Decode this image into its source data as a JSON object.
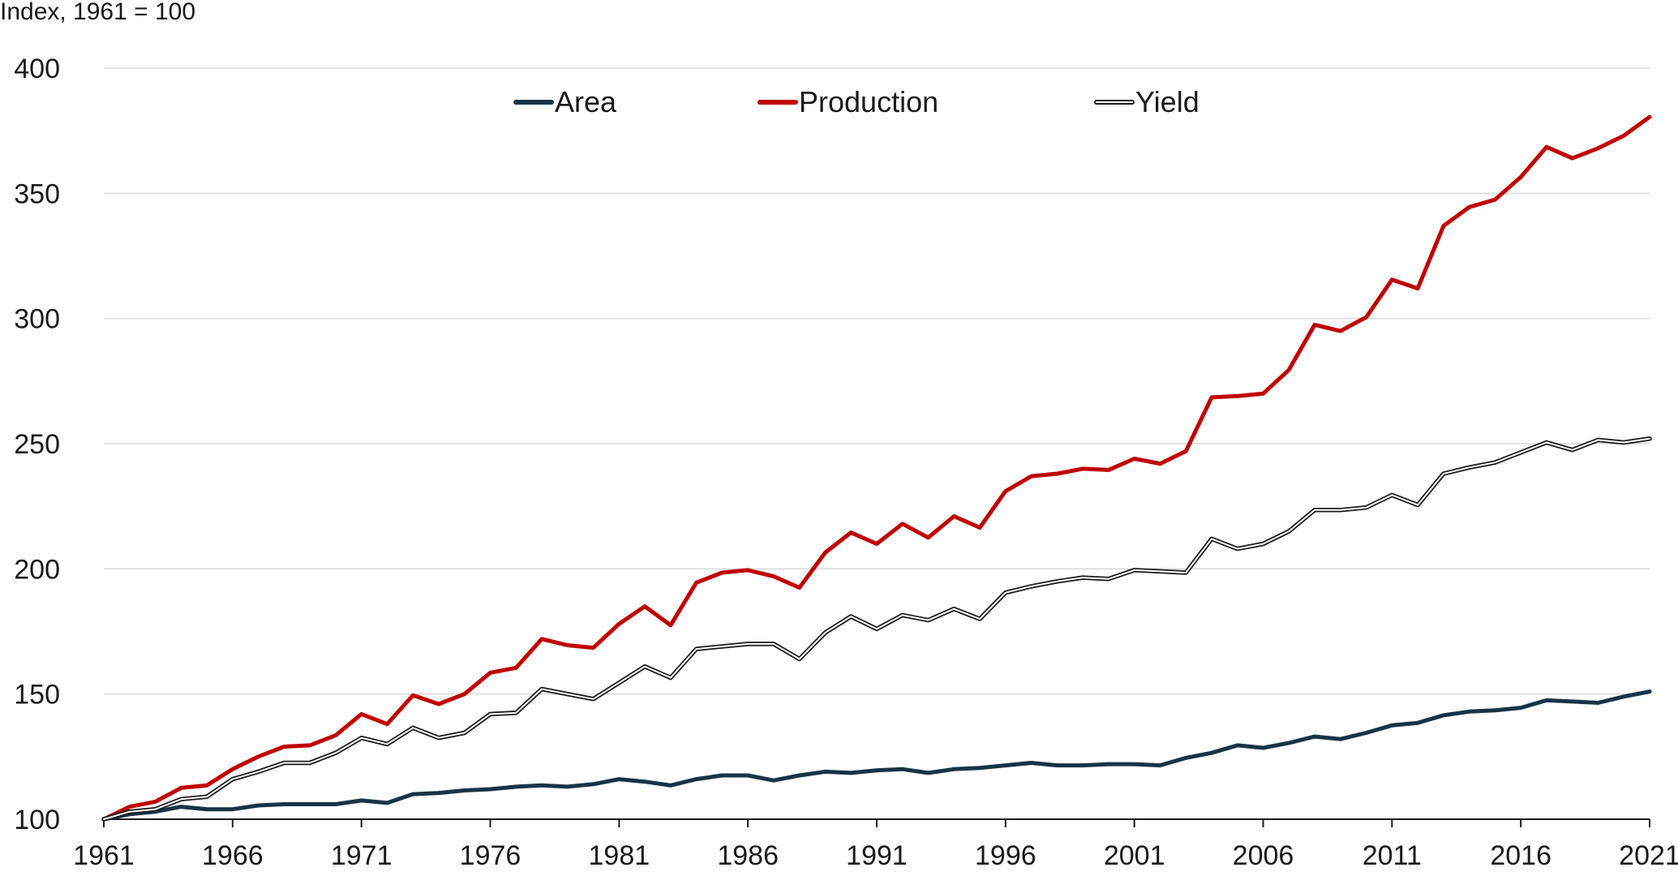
{
  "chart_data": {
    "type": "line",
    "title": "",
    "ylabel": "Index, 1961 = 100",
    "xlabel": "",
    "ylim": [
      100,
      400
    ],
    "xlim": [
      1961,
      2021
    ],
    "yticks": [
      100,
      150,
      200,
      250,
      300,
      350,
      400
    ],
    "xticks": [
      1961,
      1966,
      1971,
      1976,
      1981,
      1986,
      1991,
      1996,
      2001,
      2006,
      2011,
      2016,
      2021
    ],
    "grid": true,
    "legend_position": "top-center",
    "x": [
      1961,
      1962,
      1963,
      1964,
      1965,
      1966,
      1967,
      1968,
      1969,
      1970,
      1971,
      1972,
      1973,
      1974,
      1975,
      1976,
      1977,
      1978,
      1979,
      1980,
      1981,
      1982,
      1983,
      1984,
      1985,
      1986,
      1987,
      1988,
      1989,
      1990,
      1991,
      1992,
      1993,
      1994,
      1995,
      1996,
      1997,
      1998,
      1999,
      2000,
      2001,
      2002,
      2003,
      2004,
      2005,
      2006,
      2007,
      2008,
      2009,
      2010,
      2011,
      2012,
      2013,
      2014,
      2015,
      2016,
      2017,
      2018,
      2019,
      2020,
      2021
    ],
    "series": [
      {
        "name": "Area",
        "color": "#173447",
        "style": "solid",
        "values": [
          100,
          102,
          103,
          105,
          104,
          104,
          105.5,
          106,
          106,
          106,
          107.5,
          106.5,
          110,
          110.5,
          111.5,
          112,
          113,
          113.5,
          113,
          114,
          116,
          115,
          113.5,
          116,
          117.5,
          117.5,
          115.5,
          117.5,
          119,
          118.5,
          119.5,
          120,
          118.5,
          120,
          120.5,
          121.5,
          122.5,
          121.5,
          121.5,
          122,
          122,
          121.5,
          124.5,
          126.5,
          129.5,
          128.5,
          130.5,
          133,
          132,
          134.5,
          137.5,
          138.5,
          141.5,
          143,
          143.5,
          144.5,
          147.5,
          147,
          146.5,
          149,
          151
        ]
      },
      {
        "name": "Production",
        "color": "#c00000",
        "style": "solid",
        "values": [
          100,
          105,
          107,
          112.5,
          113.5,
          120,
          125,
          129,
          129.5,
          133.5,
          142,
          138,
          149.5,
          146,
          150,
          158.5,
          160.5,
          172,
          169.5,
          168.5,
          178,
          185,
          177.5,
          194.5,
          198.5,
          199.5,
          197,
          192.5,
          206.5,
          214.5,
          210,
          218,
          212.5,
          221,
          216.5,
          231,
          237,
          238,
          240,
          239.5,
          244,
          242,
          247,
          268.5,
          269,
          270,
          279.5,
          297.5,
          295,
          300.5,
          315.5,
          312,
          337,
          344.5,
          347.5,
          356.5,
          368.5,
          364,
          368,
          373,
          380.5
        ]
      },
      {
        "name": "Yield",
        "color": "#1a1a1a",
        "style": "double",
        "values": [
          100,
          103,
          104,
          108,
          109,
          116,
          119,
          122.5,
          122.5,
          126.5,
          132.5,
          130,
          136.5,
          132.5,
          134.5,
          142,
          142.5,
          152,
          150,
          148,
          154.5,
          161,
          156.5,
          168,
          169,
          170,
          170,
          164,
          174.5,
          181,
          176,
          181.5,
          179.5,
          184,
          180,
          190.5,
          193,
          195,
          196.5,
          196,
          199.5,
          199,
          198.5,
          212,
          208,
          210,
          215,
          223.5,
          223.5,
          224.5,
          229.5,
          225.5,
          238,
          240.5,
          242.5,
          246.5,
          250.5,
          247.5,
          251.5,
          250.5,
          252
        ]
      }
    ]
  }
}
